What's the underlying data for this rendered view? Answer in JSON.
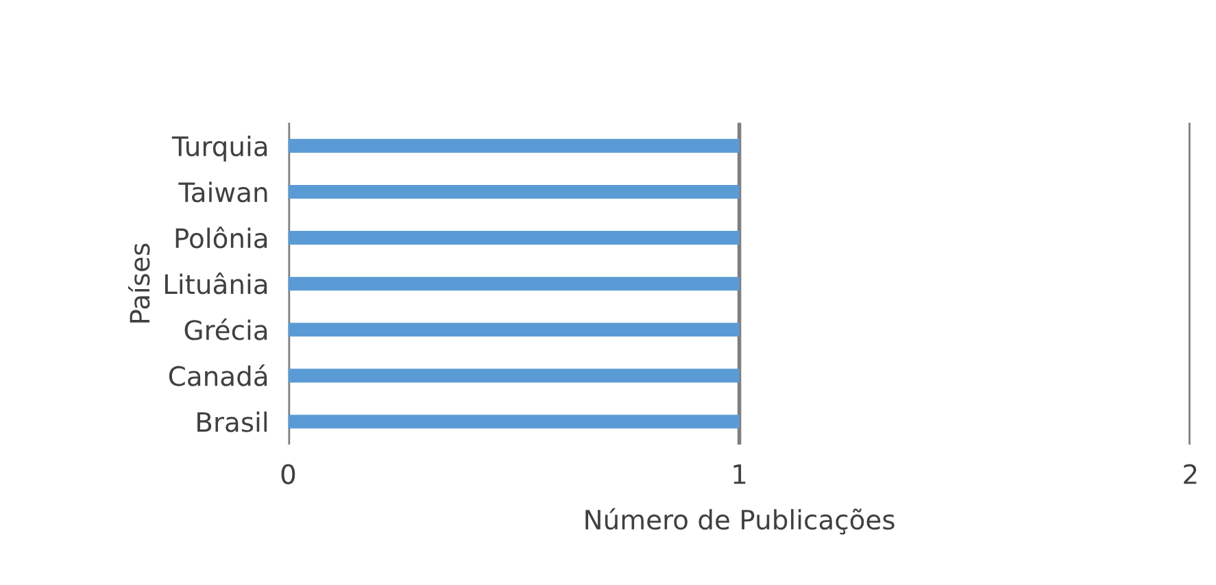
{
  "chart_data": {
    "type": "bar",
    "orientation": "horizontal",
    "xlabel": "Número de Publicações",
    "ylabel": "Países",
    "categories": [
      "Turquia",
      "Taiwan",
      "Polônia",
      "Lituânia",
      "Grécia",
      "Canadá",
      "Brasil"
    ],
    "values": [
      1,
      1,
      1,
      1,
      1,
      1,
      1
    ],
    "color": "#5b9bd5",
    "xlim": [
      0,
      2
    ],
    "xticks": [
      0,
      1,
      2
    ],
    "grid": "x"
  }
}
